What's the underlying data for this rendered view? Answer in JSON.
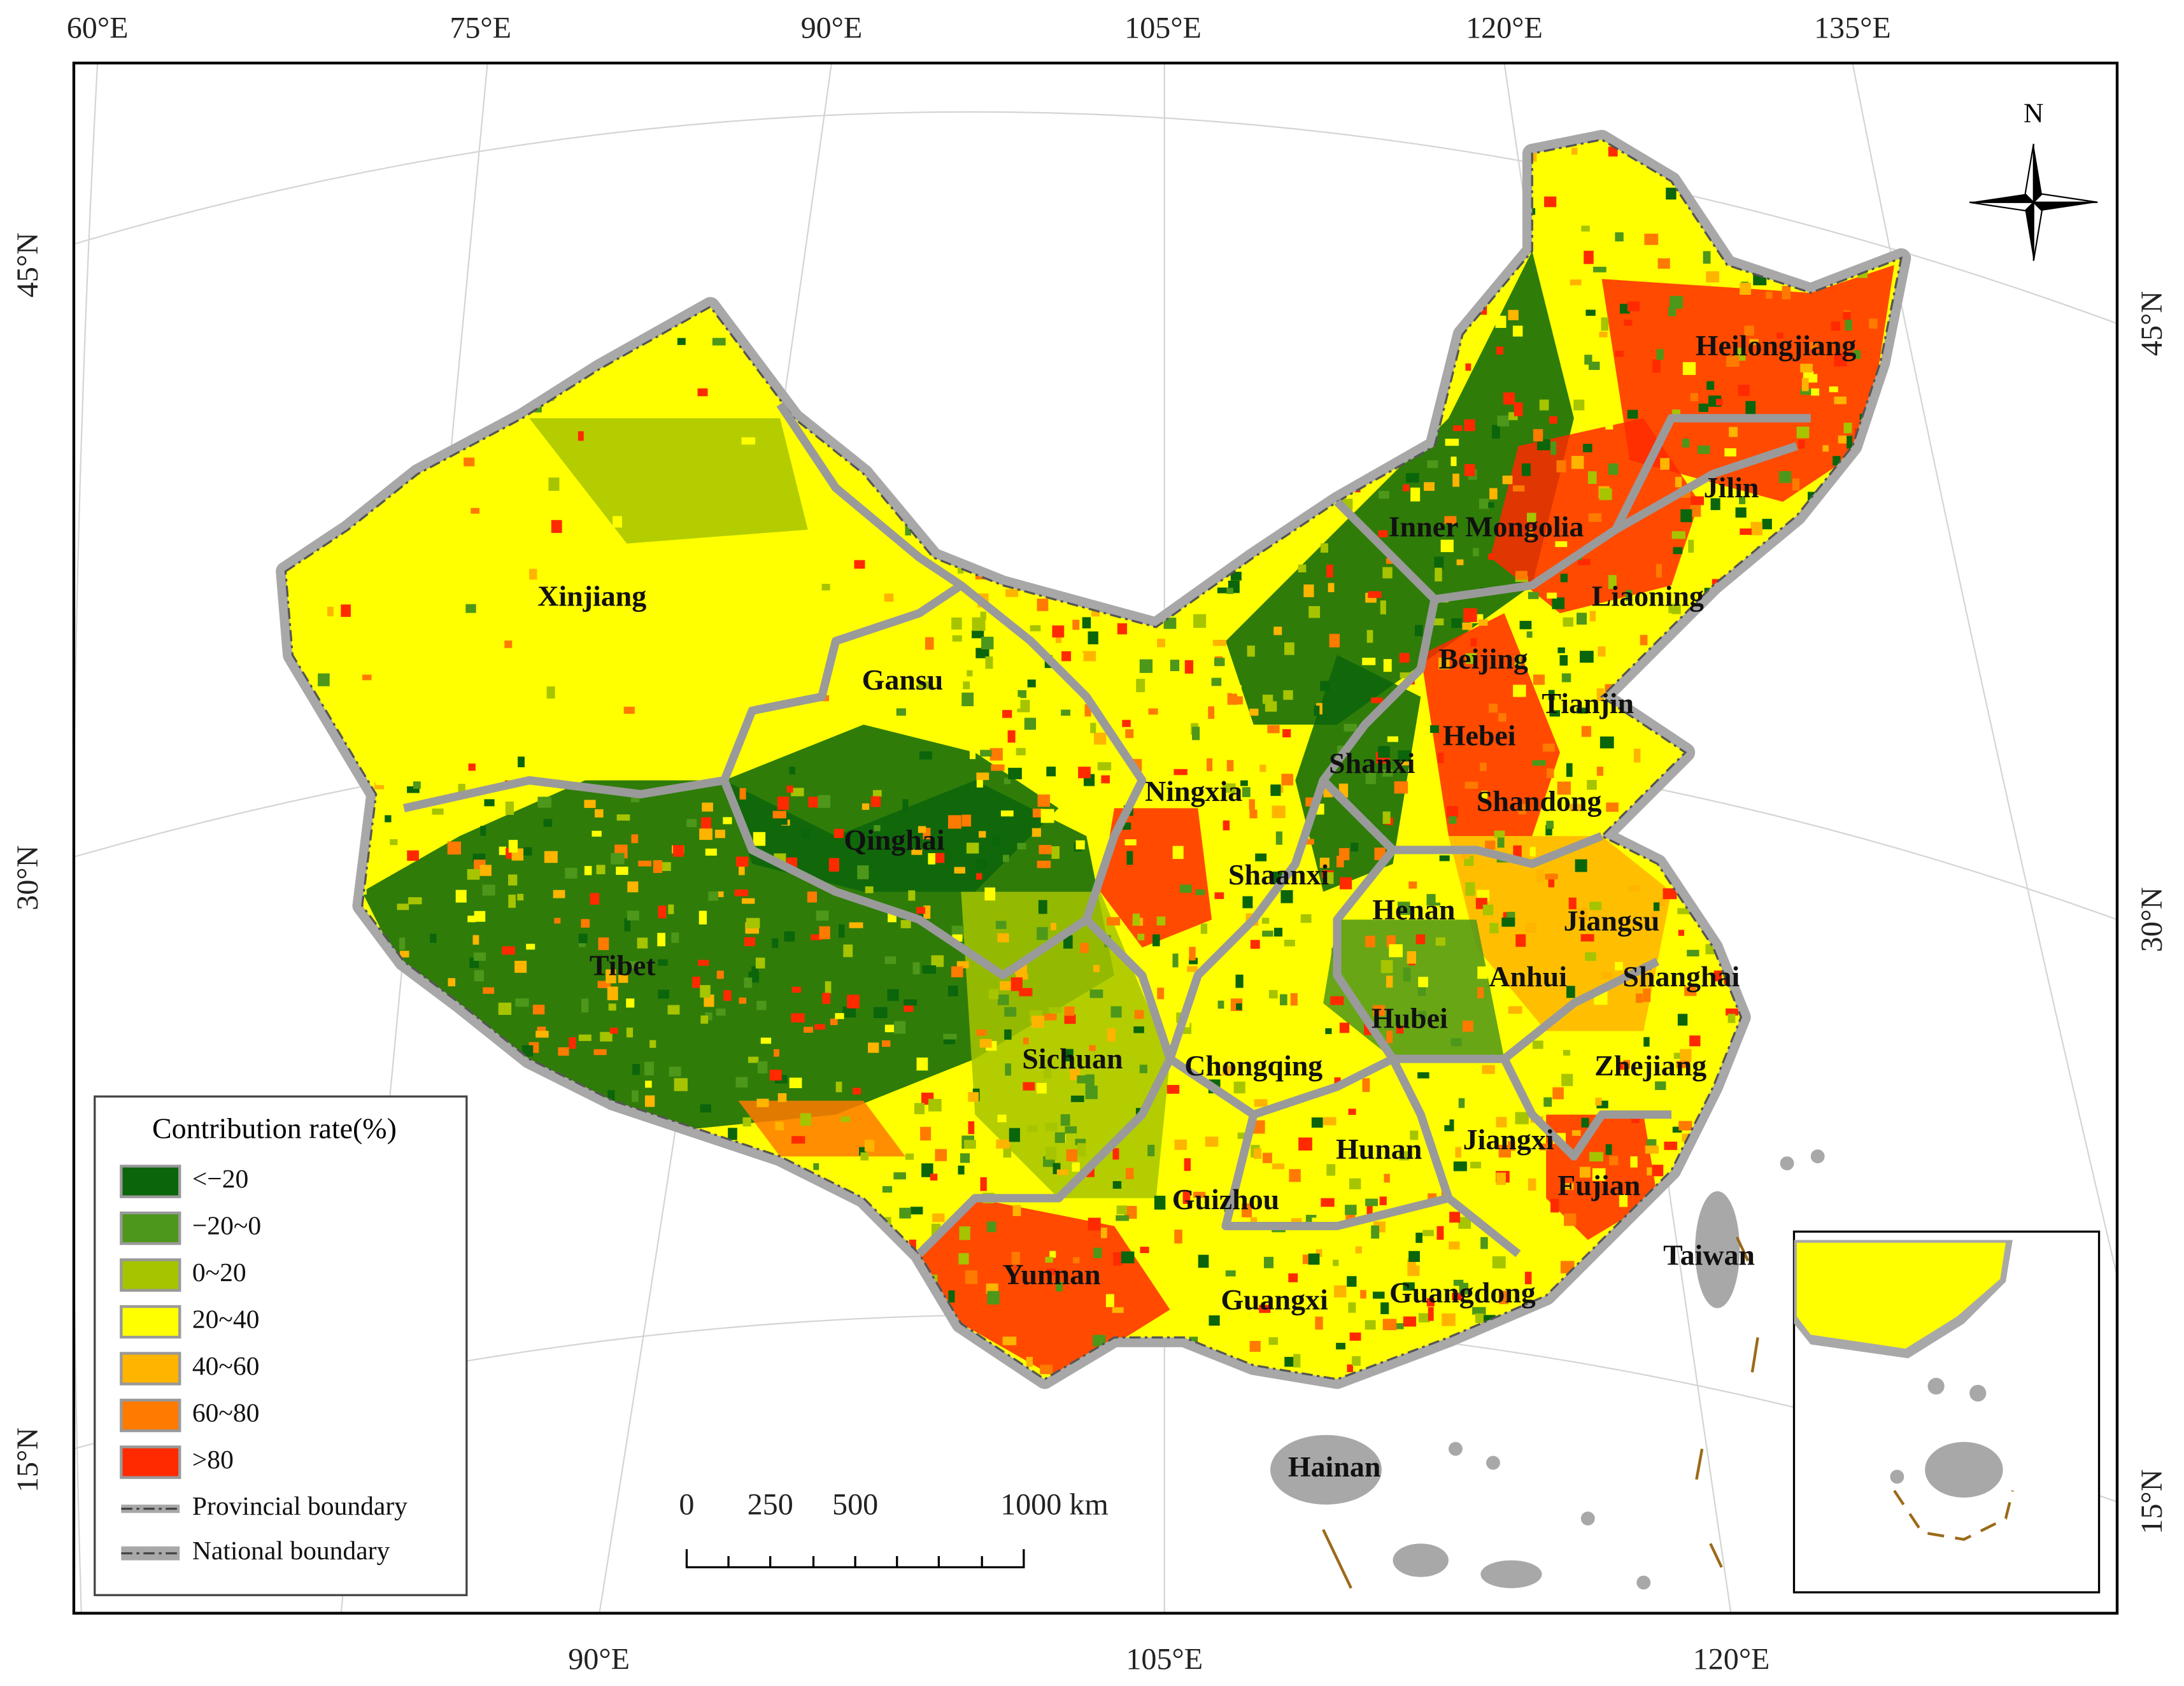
{
  "graticule": {
    "top": [
      "60°E",
      "75°E",
      "90°E",
      "105°E",
      "120°E",
      "135°E"
    ],
    "bottom": [
      "90°E",
      "105°E",
      "120°E"
    ],
    "left": [
      "45°N",
      "30°N",
      "15°N"
    ],
    "right": [
      "45°N",
      "30°N",
      "15°N"
    ]
  },
  "north": "N",
  "provinces": [
    "Heilongjiang",
    "Jilin",
    "Liaoning",
    "Inner Mongolia",
    "Beijing",
    "Tianjin",
    "Hebei",
    "Shanxi",
    "Shandong",
    "Xinjiang",
    "Gansu",
    "Ningxia",
    "Qinghai",
    "Shaanxi",
    "Henan",
    "Jiangsu",
    "Tibet",
    "Anhui",
    "Shanghai",
    "Hubei",
    "Sichuan",
    "Chongqing",
    "Zhejiang",
    "Jiangxi",
    "Hunan",
    "Fujian",
    "Guizhou",
    "Taiwan",
    "Yunnan",
    "Guangxi",
    "Guangdong",
    "Hainan"
  ],
  "legend": {
    "title": "Contribution rate(%)",
    "items": [
      {
        "label": "<−20",
        "color": "#0b650b"
      },
      {
        "label": "−20~0",
        "color": "#4d971a"
      },
      {
        "label": "0~20",
        "color": "#a6c400"
      },
      {
        "label": "20~40",
        "color": "#ffff00"
      },
      {
        "label": "40~60",
        "color": "#ffb400"
      },
      {
        "label": "60~80",
        "color": "#ff7a00"
      },
      {
        "label": ">80",
        "color": "#ff2a00"
      }
    ],
    "boundaries": [
      "Provincial boundary",
      "National boundary"
    ]
  },
  "scale_bar": {
    "labels": [
      "0",
      "250",
      "500",
      "1000 km"
    ]
  }
}
